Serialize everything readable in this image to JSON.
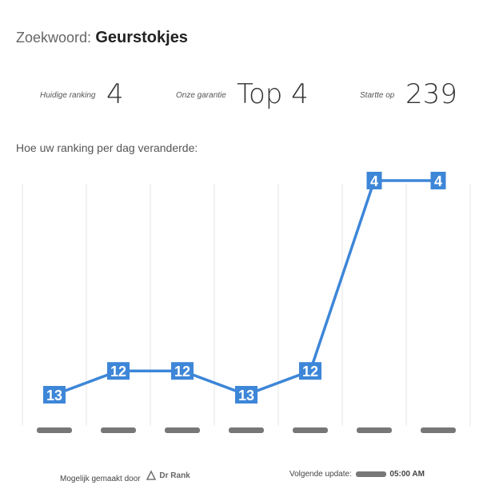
{
  "header": {
    "label": "Zoekwoord:",
    "keyword": "Geurstokjes"
  },
  "stats": {
    "current_ranking_label": "Huidige ranking",
    "current_ranking_value": "4",
    "guarantee_label": "Onze garantie",
    "guarantee_value": "Top 4",
    "start_label": "Startte op",
    "start_value": "239"
  },
  "subtitle": "Hoe uw ranking per dag veranderde:",
  "chart_data": {
    "type": "line",
    "categories": [
      "",
      "",
      "",
      "",
      "",
      "",
      ""
    ],
    "values": [
      13,
      12,
      12,
      13,
      12,
      4,
      4
    ],
    "ylim": [
      4,
      13
    ],
    "y_reversed": true,
    "grid": true,
    "line_color": "#3d86d8",
    "label_bg": "#3d86d8"
  },
  "footer": {
    "powered_by": "Mogelijk gemaakt door",
    "brand": "Dr Rank",
    "next_update_label": "Volgende update:",
    "next_update_time": "05:00 AM"
  }
}
